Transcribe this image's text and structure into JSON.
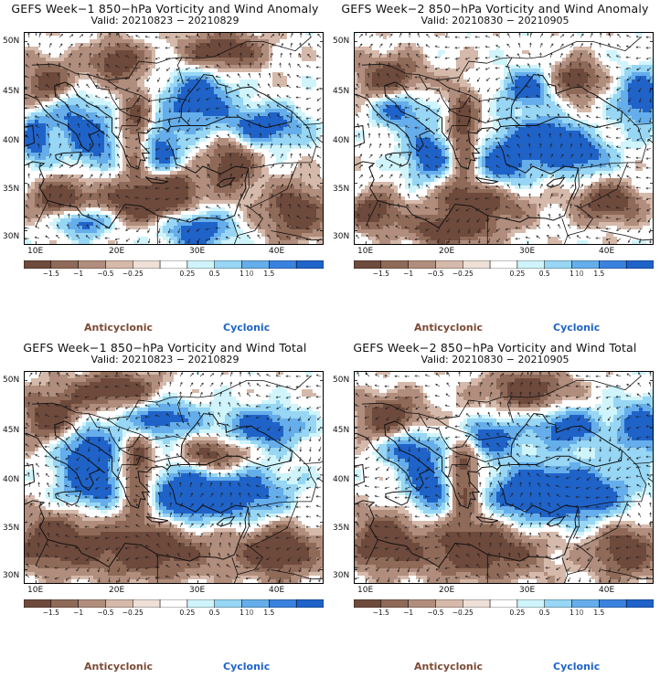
{
  "panels": [
    {
      "title": "GEFS Week−1 850−hPa Vorticity and Wind Anomaly",
      "valid": "Valid: 20210823 − 20210829"
    },
    {
      "title": "GEFS Week−2 850−hPa Vorticity and Wind Anomaly",
      "valid": "Valid: 20210830 − 20210905"
    },
    {
      "title": "GEFS Week−1 850−hPa Vorticity and Wind Total",
      "valid": "Valid: 20210823 − 20210829"
    },
    {
      "title": "GEFS Week−2 850−hPa Vorticity and Wind Total",
      "valid": "Valid: 20210830 − 20210905"
    }
  ],
  "axis": {
    "lat_labels": [
      "50N",
      "45N",
      "40N",
      "35N",
      "30N"
    ],
    "lon_labels": [
      "10E",
      "20E",
      "30E",
      "40E"
    ]
  },
  "colorbar": {
    "labels": [
      "−1.5",
      "−1",
      "−0.5",
      "−0.25",
      "0.25",
      "0.5",
      "1",
      "1.5"
    ],
    "mid_label": "10",
    "colors": [
      "#6e4a3c",
      "#8f6a58",
      "#b08d7c",
      "#d5b9aa",
      "#eedfd7",
      "#ffffff",
      "#cff4fb",
      "#97d6f4",
      "#65aeeb",
      "#3b82de",
      "#1f63c9"
    ]
  },
  "legend": {
    "anticyclonic": "Anticyclonic",
    "cyclonic": "Cyclonic"
  },
  "colors": {
    "anticyclonic": "#7b4a34",
    "cyclonic": "#1f63c9"
  }
}
